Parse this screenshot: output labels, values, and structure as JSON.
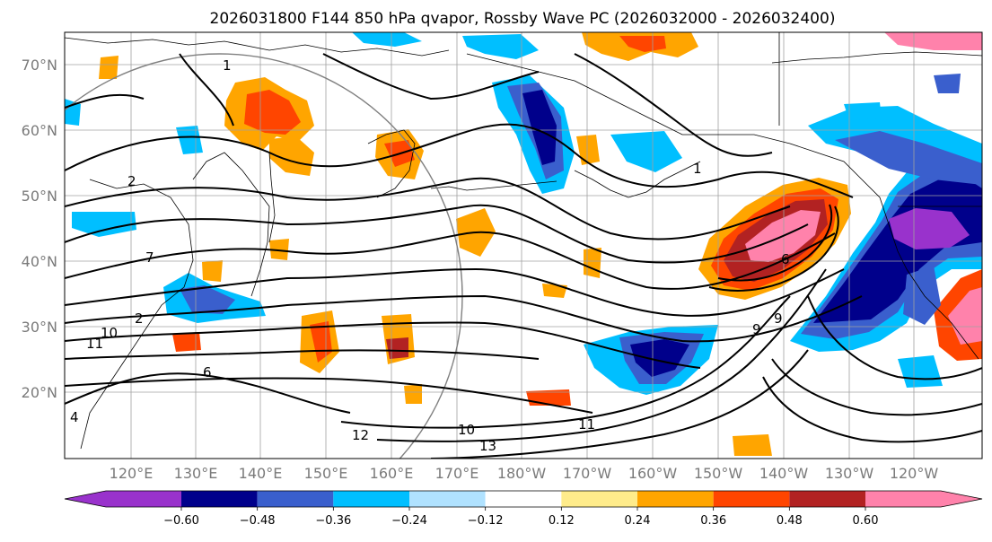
{
  "title": "2026031800 F144 850 hPa qvapor, Rossby Wave PC (2026032000 - 2026032400)",
  "map": {
    "lat_labels": [
      "70°N",
      "60°N",
      "50°N",
      "40°N",
      "30°N",
      "20°N"
    ],
    "lon_labels": [
      "120°E",
      "130°E",
      "140°E",
      "150°E",
      "160°E",
      "170°E",
      "180°W",
      "170°W",
      "160°W",
      "150°W",
      "140°W",
      "130°W",
      "120°W"
    ],
    "contour_labels": [
      "1",
      "1",
      "2",
      "6",
      "6",
      "9",
      "9",
      "10",
      "10",
      "11",
      "11",
      "13",
      "12",
      "4",
      "7",
      "2"
    ],
    "background_color": "#ffffff",
    "coastline_color": "#000000",
    "grid_color": "#a0a0a0"
  },
  "colorbar": {
    "tick_labels": [
      "−0.60",
      "−0.48",
      "−0.36",
      "−0.24",
      "−0.12",
      "0.12",
      "0.24",
      "0.36",
      "0.48",
      "0.60"
    ],
    "bins": [
      {
        "color": "#9932cc"
      },
      {
        "color": "#00008b"
      },
      {
        "color": "#3a5fcd"
      },
      {
        "color": "#00bfff"
      },
      {
        "color": "#b0e2ff"
      },
      {
        "color": "#ffffff"
      },
      {
        "color": "#ffec8b"
      },
      {
        "color": "#ffa500"
      },
      {
        "color": "#ff4500"
      },
      {
        "color": "#b22222"
      },
      {
        "color": "#ff82ab"
      }
    ]
  },
  "chart_data": {
    "type": "heatmap",
    "title": "2026031800 F144 850 hPa qvapor, Rossby Wave PC (2026032000 - 2026032400)",
    "variable": "850 hPa qvapor Rossby Wave PC",
    "lat_range": [
      10,
      75
    ],
    "lon_range": [
      "110°E",
      "115°W"
    ],
    "color_levels": [
      -0.6,
      -0.48,
      -0.36,
      -0.24,
      -0.12,
      0.12,
      0.24,
      0.36,
      0.48,
      0.6
    ],
    "colorbar_extend": "both",
    "grid": true
  }
}
